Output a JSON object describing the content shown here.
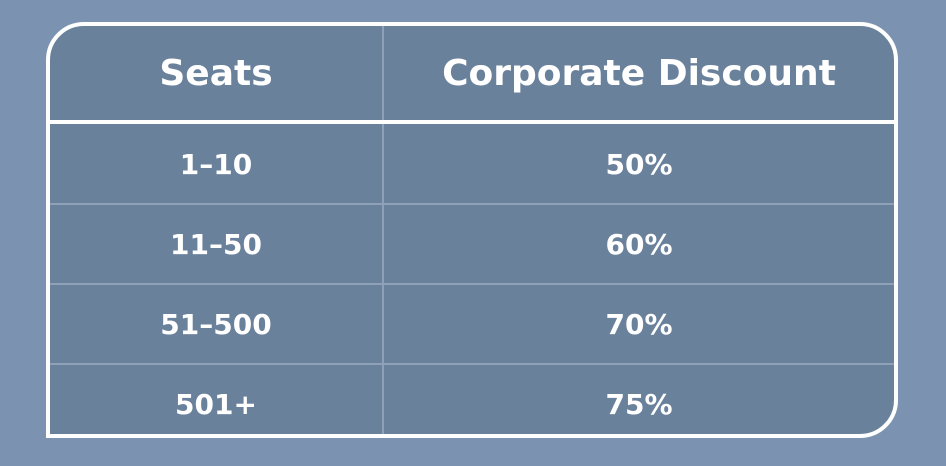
{
  "table": {
    "headers": [
      "Seats",
      "Corporate Discount"
    ],
    "rows": [
      [
        "1–10",
        "50%"
      ],
      [
        "11–50",
        "60%"
      ],
      [
        "51–500",
        "70%"
      ],
      [
        "501+",
        "75%"
      ]
    ]
  }
}
